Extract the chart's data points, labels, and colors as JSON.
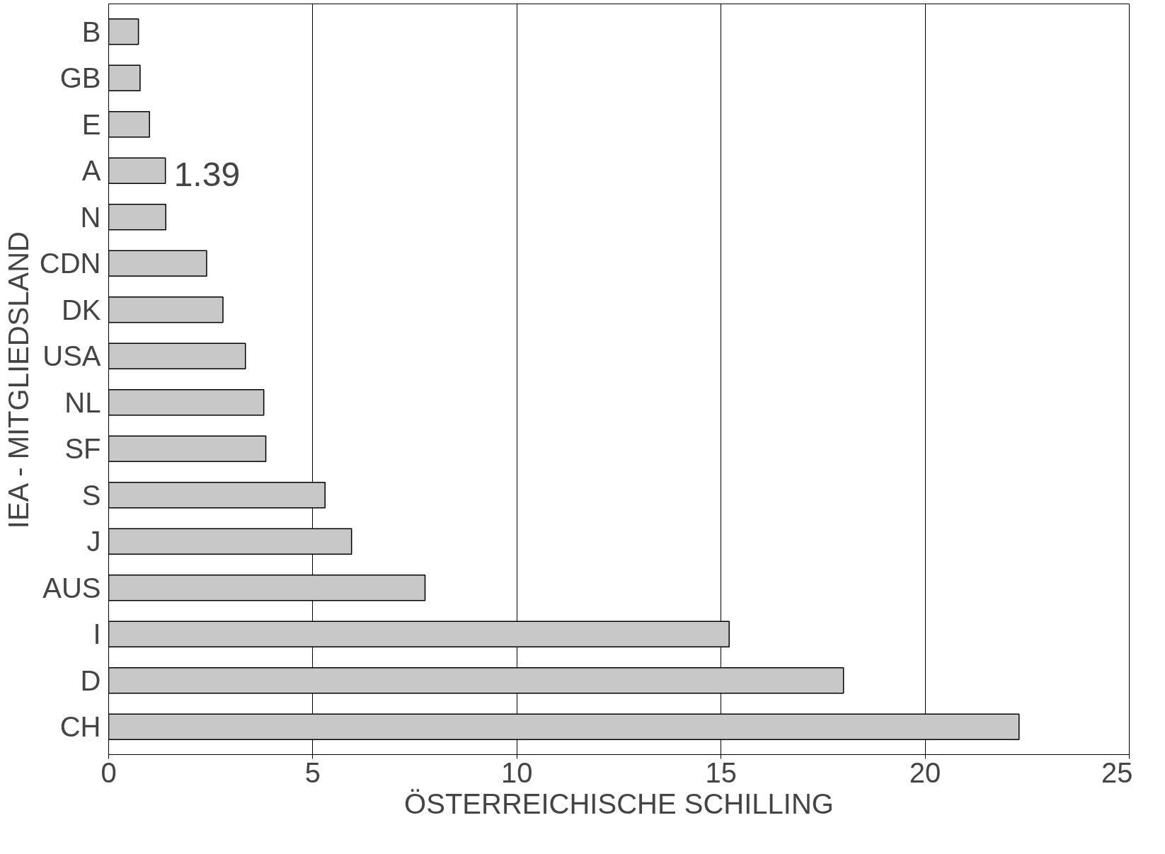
{
  "chart_data": {
    "type": "bar",
    "orientation": "horizontal",
    "xlabel": "ÖSTERREICHISCHE SCHILLING",
    "ylabel": "IEA - MITGLIEDSLAND",
    "categories": [
      "B",
      "GB",
      "E",
      "A",
      "N",
      "CDN",
      "DK",
      "USA",
      "NL",
      "SF",
      "S",
      "J",
      "AUS",
      "I",
      "D",
      "CH"
    ],
    "values": [
      0.73,
      0.77,
      1.0,
      1.39,
      1.4,
      2.4,
      2.8,
      3.35,
      3.8,
      3.85,
      5.3,
      5.95,
      7.75,
      15.2,
      18.0,
      22.3
    ],
    "color": "#c8c8c8",
    "xlim": [
      0,
      25
    ],
    "xticks": [
      0,
      5,
      10,
      15,
      20,
      25
    ],
    "grid": "x",
    "annotations": [
      {
        "text": "1.39",
        "x": 1.39,
        "y": "A"
      }
    ]
  }
}
